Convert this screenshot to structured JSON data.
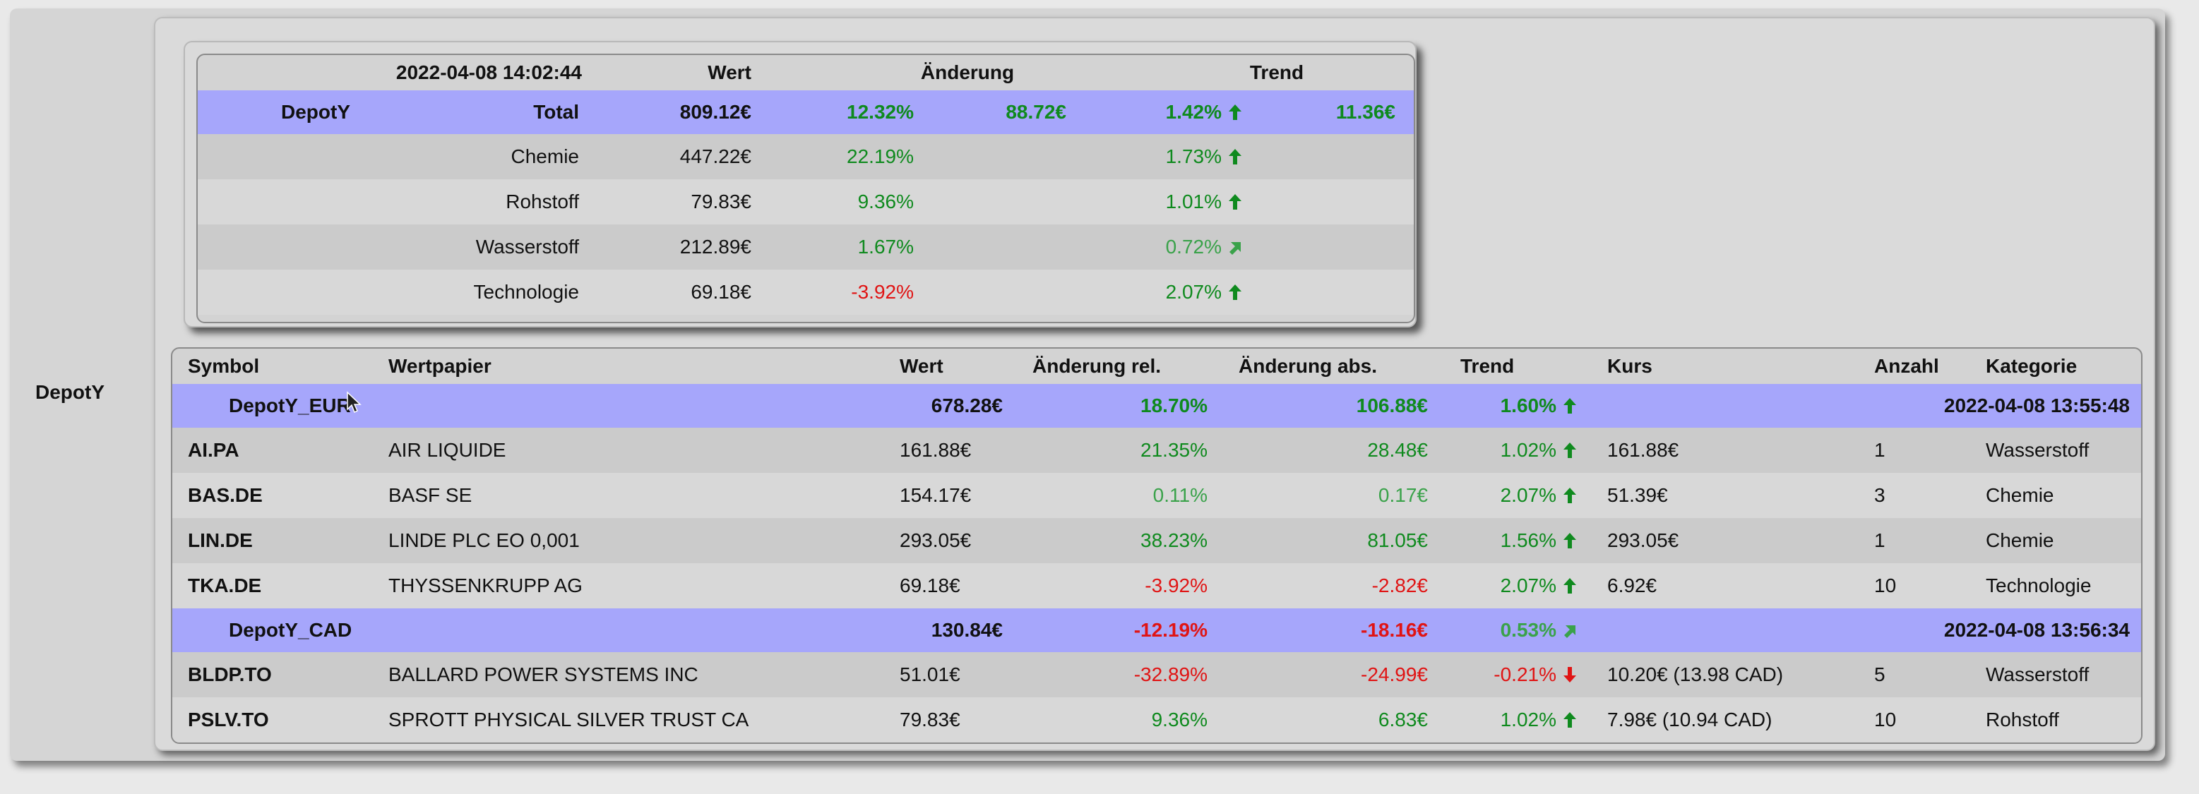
{
  "depot_name": "DepotY",
  "summary": {
    "header": {
      "timestamp": "2022-04-08 14:02:44",
      "wert": "Wert",
      "aenderung": "Änderung",
      "trend": "Trend"
    },
    "total": {
      "depot": "DepotY",
      "label": "Total",
      "wert": "809.12€",
      "rel": "12.32%",
      "abs": "88.72€",
      "trend_pct": "1.42%",
      "trend_arrow": "arrow-up-icon",
      "trend_abs": "11.36€"
    },
    "rows": [
      {
        "label": "Chemie",
        "wert": "447.22€",
        "rel": "22.19%",
        "trend_pct": "1.73%",
        "trend_arrow": "arrow-up-icon"
      },
      {
        "label": "Rohstoff",
        "wert": "79.83€",
        "rel": "9.36%",
        "trend_pct": "1.01%",
        "trend_arrow": "arrow-up-icon"
      },
      {
        "label": "Wasserstoff",
        "wert": "212.89€",
        "rel": "1.67%",
        "trend_pct": "0.72%",
        "trend_arrow": "arrow-up-right-icon"
      },
      {
        "label": "Technologie",
        "wert": "69.18€",
        "rel": "-3.92%",
        "trend_pct": "2.07%",
        "trend_arrow": "arrow-up-icon"
      }
    ]
  },
  "details": {
    "columns": [
      "Symbol",
      "Wertpapier",
      "Wert",
      "Änderung rel.",
      "Änderung abs.",
      "Trend",
      "Kurs",
      "Anzahl",
      "Kategorie"
    ],
    "groups": [
      {
        "name": "DepotY_EUR",
        "wert": "678.28€",
        "rel": "18.70%",
        "abs": "106.88€",
        "trend": "1.60%",
        "timestamp": "2022-04-08 13:55:48",
        "rows": [
          {
            "symbol": "AI.PA",
            "name": "AIR LIQUIDE",
            "wert": "161.88€",
            "rel": "21.35%",
            "abs": "28.48€",
            "trend": "1.02%",
            "kurs": "161.88€",
            "anzahl": "1",
            "kategorie": "Wasserstoff"
          },
          {
            "symbol": "BAS.DE",
            "name": "BASF SE",
            "wert": "154.17€",
            "rel": "0.11%",
            "abs": "0.17€",
            "trend": "2.07%",
            "kurs": "51.39€",
            "anzahl": "3",
            "kategorie": "Chemie"
          },
          {
            "symbol": "LIN.DE",
            "name": "LINDE PLC EO 0,001",
            "wert": "293.05€",
            "rel": "38.23%",
            "abs": "81.05€",
            "trend": "1.56%",
            "kurs": "293.05€",
            "anzahl": "1",
            "kategorie": "Chemie"
          },
          {
            "symbol": "TKA.DE",
            "name": "THYSSENKRUPP AG",
            "wert": "69.18€",
            "rel": "-3.92%",
            "abs": "-2.82€",
            "trend": "2.07%",
            "kurs": "6.92€",
            "anzahl": "10",
            "kategorie": "Technologie"
          }
        ]
      },
      {
        "name": "DepotY_CAD",
        "wert": "130.84€",
        "rel": "-12.19%",
        "abs": "-18.16€",
        "trend": "0.53%",
        "timestamp": "2022-04-08 13:56:34",
        "rows": [
          {
            "symbol": "BLDP.TO",
            "name": "BALLARD POWER SYSTEMS INC",
            "wert": "51.01€",
            "rel": "-32.89%",
            "abs": "-24.99€",
            "trend": "-0.21%",
            "kurs": "10.20€ (13.98 CAD)",
            "anzahl": "5",
            "kategorie": "Wasserstoff"
          },
          {
            "symbol": "PSLV.TO",
            "name": "SPROTT PHYSICAL SILVER TRUST CA",
            "wert": "79.83€",
            "rel": "9.36%",
            "abs": "6.83€",
            "trend": "1.02%",
            "kurs": "7.98€ (10.94 CAD)",
            "anzahl": "10",
            "kategorie": "Rohstoff"
          }
        ]
      }
    ]
  },
  "colors": {
    "positive": "#0f8a1e",
    "negative": "#e01414",
    "highlight_row": "#a6a6fb"
  }
}
